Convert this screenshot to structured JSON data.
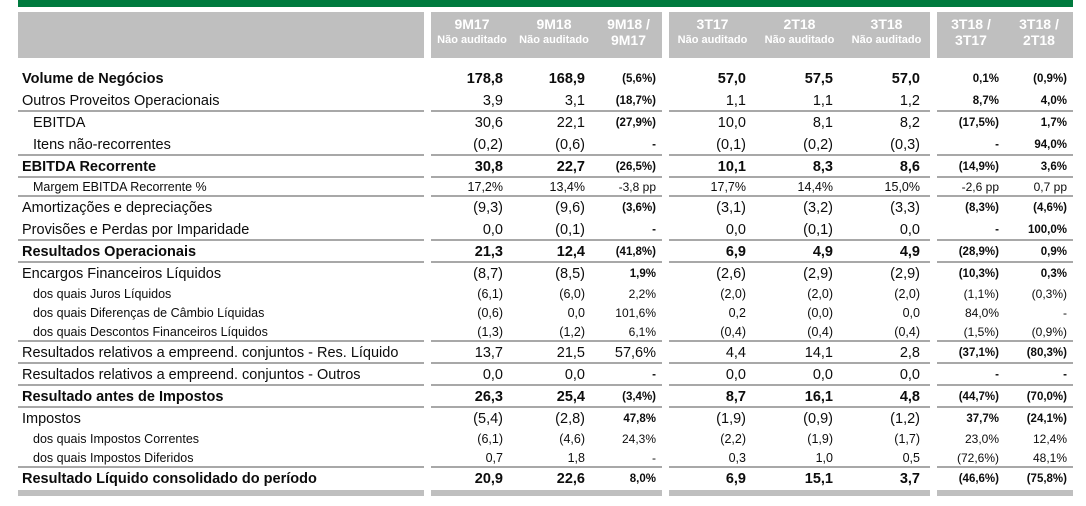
{
  "theme": {
    "accent_green": "#007a3e",
    "header_bg": "#bfbfbf",
    "header_text": "#ffffff",
    "separator_line": "#a8a8a8",
    "text": "#0c0c0c"
  },
  "header": {
    "groups": [
      {
        "cols": [
          {
            "line1": "9M17",
            "line2": "Não auditado",
            "sub_small": true
          },
          {
            "line1": "9M18",
            "line2": "Não auditado",
            "sub_small": true
          },
          {
            "line1": "9M18 /",
            "line2": "9M17",
            "sub_small": false
          }
        ]
      },
      {
        "cols": [
          {
            "line1": "3T17",
            "line2": "Não auditado",
            "sub_small": true
          },
          {
            "line1": "2T18",
            "line2": "Não auditado",
            "sub_small": true
          },
          {
            "line1": "3T18",
            "line2": "Não auditado",
            "sub_small": true
          }
        ]
      },
      {
        "cols": [
          {
            "line1": "3T18 /",
            "line2": "3T17",
            "sub_small": false
          },
          {
            "line1": "3T18 /",
            "line2": "2T18",
            "sub_small": false
          }
        ]
      }
    ]
  },
  "rows": [
    {
      "label": "Volume de Negócios",
      "style": "bold",
      "sep": false,
      "values": [
        "178,8",
        "168,9",
        "(5,6%)",
        "57,0",
        "57,5",
        "57,0",
        "0,1%",
        "(0,9%)"
      ]
    },
    {
      "label": "Outros Proveitos Operacionais",
      "style": "normal",
      "sep": true,
      "values": [
        "3,9",
        "3,1",
        "(18,7%)",
        "1,1",
        "1,1",
        "1,2",
        "8,7%",
        "4,0%"
      ]
    },
    {
      "label": "EBITDA",
      "style": "indent",
      "sep": false,
      "values": [
        "30,6",
        "22,1",
        "(27,9%)",
        "10,0",
        "8,1",
        "8,2",
        "(17,5%)",
        "1,7%"
      ]
    },
    {
      "label": "Itens não-recorrentes",
      "style": "indent",
      "sep": true,
      "values": [
        "(0,2)",
        "(0,6)",
        "-",
        "(0,1)",
        "(0,2)",
        "(0,3)",
        "-",
        "94,0%"
      ]
    },
    {
      "label": "EBITDA Recorrente",
      "style": "bold",
      "sep": true,
      "values": [
        "30,8",
        "22,7",
        "(26,5%)",
        "10,1",
        "8,3",
        "8,6",
        "(14,9%)",
        "3,6%"
      ]
    },
    {
      "label": "Margem EBITDA Recorrente %",
      "style": "small",
      "sep": true,
      "values": [
        "17,2%",
        "13,4%",
        "-3,8 pp",
        "17,7%",
        "14,4%",
        "15,0%",
        "-2,6 pp",
        "0,7 pp"
      ]
    },
    {
      "label": "Amortizações e depreciações",
      "style": "normal",
      "sep": false,
      "values": [
        "(9,3)",
        "(9,6)",
        "(3,6%)",
        "(3,1)",
        "(3,2)",
        "(3,3)",
        "(8,3%)",
        "(4,6%)"
      ]
    },
    {
      "label": "Provisões e Perdas por Imparidade",
      "style": "normal",
      "sep": true,
      "values": [
        "0,0",
        "(0,1)",
        "-",
        "0,0",
        "(0,1)",
        "0,0",
        "-",
        "100,0%"
      ]
    },
    {
      "label": "Resultados Operacionais",
      "style": "bold",
      "sep": true,
      "values": [
        "21,3",
        "12,4",
        "(41,8%)",
        "6,9",
        "4,9",
        "4,9",
        "(28,9%)",
        "0,9%"
      ]
    },
    {
      "label": "Encargos Financeiros Líquidos",
      "style": "normal",
      "sep": false,
      "values": [
        "(8,7)",
        "(8,5)",
        "1,9%",
        "(2,6)",
        "(2,9)",
        "(2,9)",
        "(10,3%)",
        "0,3%"
      ]
    },
    {
      "label": "dos quais Juros Líquidos",
      "style": "small",
      "sep": false,
      "values": [
        "(6,1)",
        "(6,0)",
        "2,2%",
        "(2,0)",
        "(2,0)",
        "(2,0)",
        "(1,1%)",
        "(0,3%)"
      ]
    },
    {
      "label": "dos quais Diferenças de Câmbio Líquidas",
      "style": "small",
      "sep": false,
      "values": [
        "(0,6)",
        "0,0",
        "101,6%",
        "0,2",
        "(0,0)",
        "0,0",
        "84,0%",
        "-"
      ]
    },
    {
      "label": "dos quais Descontos Financeiros Líquidos",
      "style": "small",
      "sep": true,
      "values": [
        "(1,3)",
        "(1,2)",
        "6,1%",
        "(0,4)",
        "(0,4)",
        "(0,4)",
        "(1,5%)",
        "(0,9%)"
      ]
    },
    {
      "label": "Resultados relativos a empreend. conjuntos - Res. Líquido",
      "style": "normal",
      "sep": true,
      "ratio1_large": true,
      "values": [
        "13,7",
        "21,5",
        "57,6%",
        "4,4",
        "14,1",
        "2,8",
        "(37,1%)",
        "(80,3%)"
      ]
    },
    {
      "label": "Resultados relativos a empreend. conjuntos - Outros",
      "style": "normal",
      "sep": true,
      "values": [
        "0,0",
        "0,0",
        "-",
        "0,0",
        "0,0",
        "0,0",
        "-",
        "-"
      ]
    },
    {
      "label": "Resultado antes de Impostos",
      "style": "bold",
      "sep": true,
      "values": [
        "26,3",
        "25,4",
        "(3,4%)",
        "8,7",
        "16,1",
        "4,8",
        "(44,7%)",
        "(70,0%)"
      ]
    },
    {
      "label": "Impostos",
      "style": "normal",
      "sep": false,
      "values": [
        "(5,4)",
        "(2,8)",
        "47,8%",
        "(1,9)",
        "(0,9)",
        "(1,2)",
        "37,7%",
        "(24,1%)"
      ]
    },
    {
      "label": "dos quais Impostos Correntes",
      "style": "small",
      "sep": false,
      "values": [
        "(6,1)",
        "(4,6)",
        "24,3%",
        "(2,2)",
        "(1,9)",
        "(1,7)",
        "23,0%",
        "12,4%"
      ]
    },
    {
      "label": "dos quais Impostos Diferidos",
      "style": "small",
      "sep": true,
      "values": [
        "0,7",
        "1,8",
        "-",
        "0,3",
        "1,0",
        "0,5",
        "(72,6%)",
        "48,1%"
      ]
    },
    {
      "label": "Resultado Líquido consolidado do período",
      "style": "bold",
      "sep": false,
      "values": [
        "20,9",
        "22,6",
        "8,0%",
        "6,9",
        "15,1",
        "3,7",
        "(46,6%)",
        "(75,8%)"
      ]
    }
  ]
}
